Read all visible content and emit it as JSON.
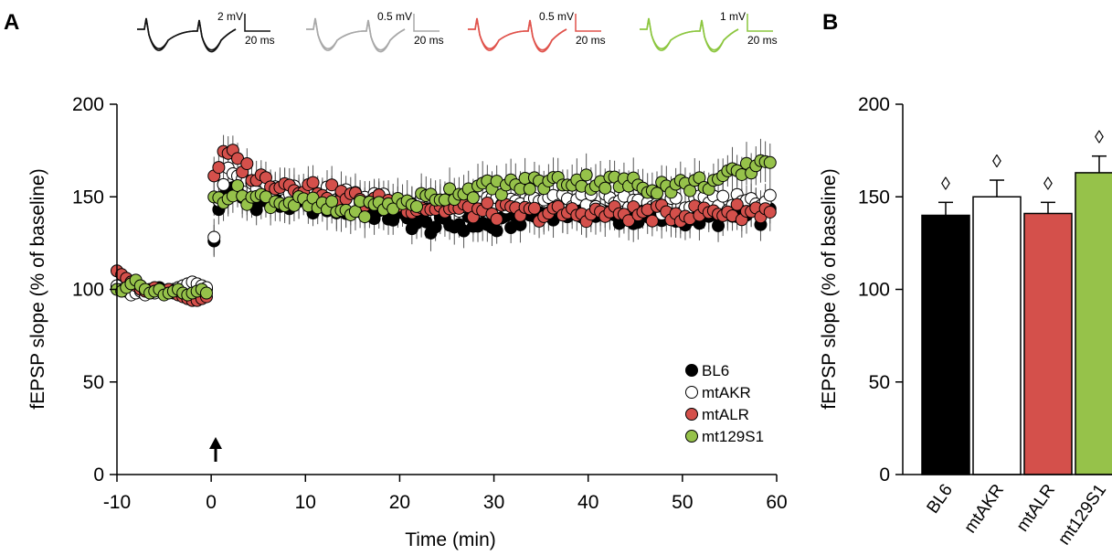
{
  "colors": {
    "BL6": "#000000",
    "mtAKR": "#ffffff",
    "mtALR": "#d4504b",
    "mt129S1": "#96c24a",
    "trace_BL6": "#111111",
    "trace_mtAKR": "#a8a8a8",
    "trace_mtALR": "#e0524b",
    "trace_mt129S1": "#8cc63f"
  },
  "panel_a": {
    "label": "A",
    "ylabel": "fEPSP slope (% of baseline)",
    "xlabel": "Time (min)",
    "arrow_icon": "arrow-up-icon",
    "traces": [
      {
        "series": "BL6",
        "amp_label": "2 mV",
        "time_label": "20 ms"
      },
      {
        "series": "mtAKR",
        "amp_label": "0.5 mV",
        "time_label": "20 ms"
      },
      {
        "series": "mtALR",
        "amp_label": "0.5 mV",
        "time_label": "20 ms"
      },
      {
        "series": "mt129S1",
        "amp_label": "1 mV",
        "time_label": "20 ms"
      }
    ]
  },
  "panel_b": {
    "label": "B",
    "ylabel": "fEPSP slope (% of baseline)",
    "marker_glyph": "◊"
  },
  "chart_data": [
    {
      "type": "scatter",
      "xlim": [
        -10,
        60
      ],
      "ylim": [
        0,
        200
      ],
      "xticks": [
        -10,
        0,
        10,
        20,
        30,
        40,
        50,
        60
      ],
      "yticks": [
        0,
        50,
        100,
        150,
        200
      ],
      "xlabel": "Time (min)",
      "ylabel": "fEPSP slope (% of baseline)",
      "legend_position": "bottom-right",
      "grid": false,
      "series": [
        {
          "name": "BL6",
          "baseline_times": [
            -10,
            -9.5,
            -9,
            -8.5,
            -8,
            -7.5,
            -7,
            -6.5,
            -6,
            -5.5,
            -5,
            -4.5,
            -4,
            -3.5,
            -3,
            -2.5,
            -2,
            -1.5,
            -1,
            -0.5
          ],
          "baseline_values": [
            101,
            102,
            100,
            99,
            100,
            101,
            99,
            98,
            100,
            101,
            99,
            100,
            99,
            100,
            99,
            98,
            100,
            99,
            101,
            100
          ],
          "keypoints_x": [
            0.3,
            1,
            2,
            3,
            5,
            8,
            12,
            16,
            19,
            21,
            23,
            26,
            28,
            30,
            33,
            36,
            40,
            43,
            46,
            50,
            53,
            56,
            58,
            59.5
          ],
          "keypoints_y": [
            124,
            150,
            153,
            150,
            147,
            146,
            145,
            143,
            140,
            137,
            134,
            135,
            136,
            133,
            139,
            142,
            141,
            139,
            138,
            139,
            138,
            139,
            139,
            140
          ],
          "error": 10
        },
        {
          "name": "mtAKR",
          "baseline_times": [
            -10,
            -9.5,
            -9,
            -8.5,
            -8,
            -7.5,
            -7,
            -6.5,
            -6,
            -5.5,
            -5,
            -4.5,
            -4,
            -3.5,
            -3,
            -2.5,
            -2,
            -1.5,
            -1,
            -0.5
          ],
          "baseline_values": [
            102,
            100,
            99,
            97,
            98,
            99,
            97,
            99,
            98,
            100,
            98,
            99,
            100,
            101,
            102,
            103,
            104,
            103,
            102,
            101
          ],
          "keypoints_x": [
            0.3,
            1,
            2,
            3,
            5,
            8,
            12,
            16,
            20,
            24,
            28,
            32,
            36,
            40,
            44,
            48,
            52,
            55,
            57,
            59.5
          ],
          "keypoints_y": [
            132,
            156,
            163,
            160,
            155,
            152,
            152,
            151,
            147,
            145,
            146,
            146,
            147,
            148,
            146,
            145,
            146,
            147,
            150,
            148
          ],
          "error": 10
        },
        {
          "name": "mtALR",
          "baseline_times": [
            -10,
            -9.5,
            -9,
            -8.5,
            -8,
            -7.5,
            -7,
            -6.5,
            -6,
            -5.5,
            -5,
            -4.5,
            -4,
            -3.5,
            -3,
            -2.5,
            -2,
            -1.5,
            -1,
            -0.5
          ],
          "baseline_values": [
            110,
            108,
            106,
            104,
            102,
            100,
            99,
            100,
            101,
            100,
            99,
            100,
            98,
            97,
            96,
            95,
            94,
            94,
            95,
            96
          ],
          "keypoints_x": [
            0.3,
            1,
            2,
            3,
            5,
            8,
            11,
            14,
            18,
            22,
            26,
            30,
            34,
            38,
            42,
            46,
            50,
            54,
            57,
            59.5
          ],
          "keypoints_y": [
            162,
            170,
            173,
            168,
            160,
            157,
            155,
            150,
            147,
            145,
            143,
            142,
            141,
            141,
            141,
            141,
            141,
            142,
            142,
            143
          ],
          "error": 11
        },
        {
          "name": "mt129S1",
          "baseline_times": [
            -10,
            -9.5,
            -9,
            -8.5,
            -8,
            -7.5,
            -7,
            -6.5,
            -6,
            -5.5,
            -5,
            -4.5,
            -4,
            -3.5,
            -3,
            -2.5,
            -2,
            -1.5,
            -1,
            -0.5
          ],
          "baseline_values": [
            100,
            99,
            101,
            103,
            105,
            102,
            100,
            98,
            99,
            100,
            97,
            98,
            99,
            100,
            98,
            97,
            98,
            99,
            100,
            98
          ],
          "keypoints_x": [
            0.3,
            1,
            2,
            4,
            7,
            10,
            14,
            18,
            22,
            26,
            30,
            34,
            38,
            42,
            46,
            50,
            53,
            56,
            58,
            59.5
          ],
          "keypoints_y": [
            147,
            150,
            153,
            150,
            148,
            146,
            142,
            145,
            148,
            153,
            155,
            157,
            159,
            158,
            156,
            156,
            158,
            162,
            168,
            172
          ],
          "error": 12
        }
      ]
    },
    {
      "type": "bar",
      "categories": [
        "BL6",
        "mtAKR",
        "mtALR",
        "mt129S1"
      ],
      "values": [
        140,
        150,
        141,
        163
      ],
      "errors": [
        7,
        9,
        6,
        9
      ],
      "ylim": [
        0,
        200
      ],
      "yticks": [
        0,
        50,
        100,
        150,
        200
      ],
      "ylabel": "fEPSP slope (% of baseline)"
    }
  ]
}
